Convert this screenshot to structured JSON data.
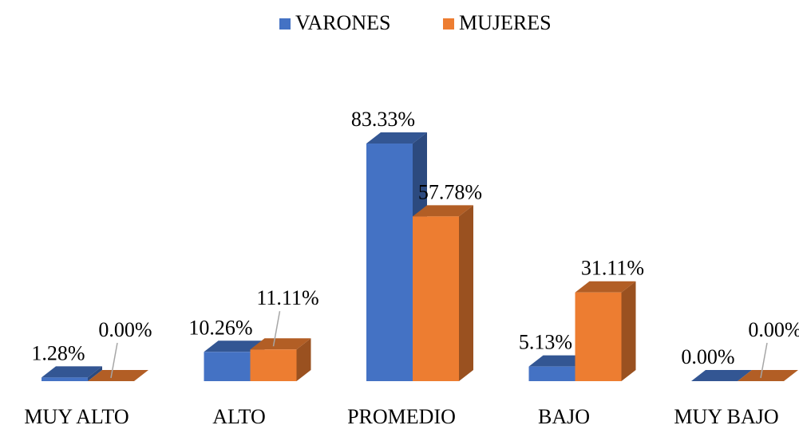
{
  "chart_data": {
    "type": "bar3d",
    "categories": [
      "MUY ALTO",
      "ALTO",
      "PROMEDIO",
      "BAJO",
      "MUY BAJO"
    ],
    "series": [
      {
        "name": "VARONES",
        "color": "#4472c4",
        "values": [
          1.28,
          10.26,
          83.33,
          5.13,
          0.0
        ],
        "value_labels": [
          "1.28%",
          "10.26%",
          "83.33%",
          "5.13%",
          "0.00%"
        ]
      },
      {
        "name": "MUJERES",
        "color": "#ed7d31",
        "values": [
          0.0,
          11.11,
          57.78,
          31.11,
          0.0
        ],
        "value_labels": [
          "0.00%",
          "11.11%",
          "57.78%",
          "31.11%",
          "0.00%"
        ]
      }
    ],
    "legend": "top"
  }
}
